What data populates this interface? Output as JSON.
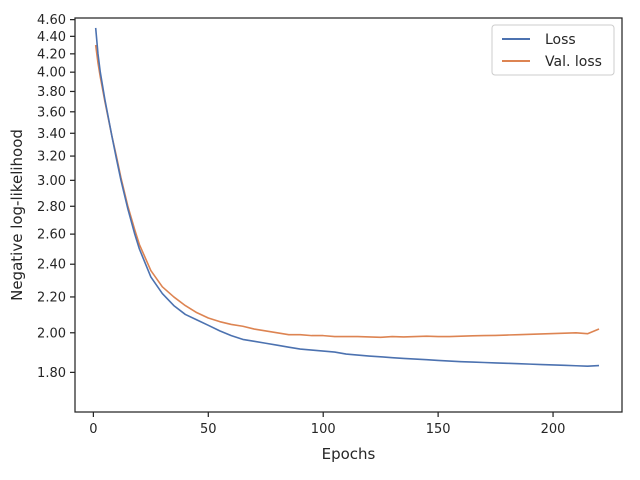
{
  "chart_data": {
    "type": "line",
    "xlabel": "Epochs",
    "ylabel": "Negative log-likelihood",
    "xlim": [
      -8,
      230
    ],
    "ylim": [
      1.62,
      4.62
    ],
    "yscale": "log",
    "x_ticks": [
      0,
      50,
      100,
      150,
      200
    ],
    "y_ticks": [
      1.8,
      2.0,
      2.2,
      2.4,
      2.6,
      2.8,
      3.0,
      3.2,
      3.4,
      3.6,
      3.8,
      4.0,
      4.2,
      4.4,
      4.6
    ],
    "y_tick_labels": [
      "1.80",
      "2.00",
      "2.20",
      "2.40",
      "2.60",
      "2.80",
      "3.00",
      "3.20",
      "3.40",
      "3.60",
      "3.80",
      "4.00",
      "4.20",
      "4.40",
      "4.60"
    ],
    "grid": false,
    "legend_position": "top-right",
    "series": [
      {
        "name": "Loss",
        "color": "#4c72b0",
        "points": [
          [
            1,
            4.5
          ],
          [
            2,
            4.2
          ],
          [
            3,
            4.0
          ],
          [
            5,
            3.72
          ],
          [
            8,
            3.38
          ],
          [
            10,
            3.18
          ],
          [
            12,
            3.0
          ],
          [
            15,
            2.78
          ],
          [
            18,
            2.6
          ],
          [
            20,
            2.5
          ],
          [
            25,
            2.32
          ],
          [
            30,
            2.22
          ],
          [
            35,
            2.15
          ],
          [
            40,
            2.1
          ],
          [
            45,
            2.07
          ],
          [
            50,
            2.04
          ],
          [
            55,
            2.01
          ],
          [
            60,
            1.985
          ],
          [
            65,
            1.965
          ],
          [
            70,
            1.955
          ],
          [
            75,
            1.945
          ],
          [
            80,
            1.935
          ],
          [
            85,
            1.925
          ],
          [
            90,
            1.915
          ],
          [
            95,
            1.91
          ],
          [
            100,
            1.905
          ],
          [
            105,
            1.9
          ],
          [
            110,
            1.89
          ],
          [
            115,
            1.885
          ],
          [
            120,
            1.88
          ],
          [
            125,
            1.876
          ],
          [
            130,
            1.872
          ],
          [
            135,
            1.868
          ],
          [
            140,
            1.865
          ],
          [
            145,
            1.862
          ],
          [
            150,
            1.858
          ],
          [
            155,
            1.855
          ],
          [
            160,
            1.852
          ],
          [
            165,
            1.85
          ],
          [
            170,
            1.848
          ],
          [
            175,
            1.846
          ],
          [
            180,
            1.844
          ],
          [
            185,
            1.842
          ],
          [
            190,
            1.84
          ],
          [
            195,
            1.838
          ],
          [
            200,
            1.836
          ],
          [
            205,
            1.834
          ],
          [
            210,
            1.832
          ],
          [
            215,
            1.83
          ],
          [
            220,
            1.833
          ]
        ]
      },
      {
        "name": "Val. loss",
        "color": "#dd8452",
        "points": [
          [
            1,
            4.3
          ],
          [
            2,
            4.1
          ],
          [
            3,
            3.95
          ],
          [
            5,
            3.7
          ],
          [
            8,
            3.38
          ],
          [
            10,
            3.2
          ],
          [
            12,
            3.02
          ],
          [
            15,
            2.8
          ],
          [
            18,
            2.63
          ],
          [
            20,
            2.53
          ],
          [
            25,
            2.36
          ],
          [
            30,
            2.26
          ],
          [
            35,
            2.2
          ],
          [
            40,
            2.15
          ],
          [
            45,
            2.11
          ],
          [
            50,
            2.08
          ],
          [
            55,
            2.06
          ],
          [
            60,
            2.045
          ],
          [
            65,
            2.035
          ],
          [
            70,
            2.02
          ],
          [
            75,
            2.01
          ],
          [
            80,
            2.0
          ],
          [
            85,
            1.99
          ],
          [
            90,
            1.99
          ],
          [
            95,
            1.985
          ],
          [
            100,
            1.985
          ],
          [
            105,
            1.98
          ],
          [
            110,
            1.98
          ],
          [
            115,
            1.98
          ],
          [
            120,
            1.978
          ],
          [
            125,
            1.976
          ],
          [
            130,
            1.98
          ],
          [
            135,
            1.978
          ],
          [
            140,
            1.98
          ],
          [
            145,
            1.982
          ],
          [
            150,
            1.98
          ],
          [
            155,
            1.98
          ],
          [
            160,
            1.982
          ],
          [
            165,
            1.984
          ],
          [
            170,
            1.985
          ],
          [
            175,
            1.986
          ],
          [
            180,
            1.988
          ],
          [
            185,
            1.99
          ],
          [
            190,
            1.992
          ],
          [
            195,
            1.994
          ],
          [
            200,
            1.996
          ],
          [
            205,
            1.998
          ],
          [
            210,
            2.0
          ],
          [
            215,
            1.995
          ],
          [
            220,
            2.02
          ]
        ]
      }
    ]
  }
}
